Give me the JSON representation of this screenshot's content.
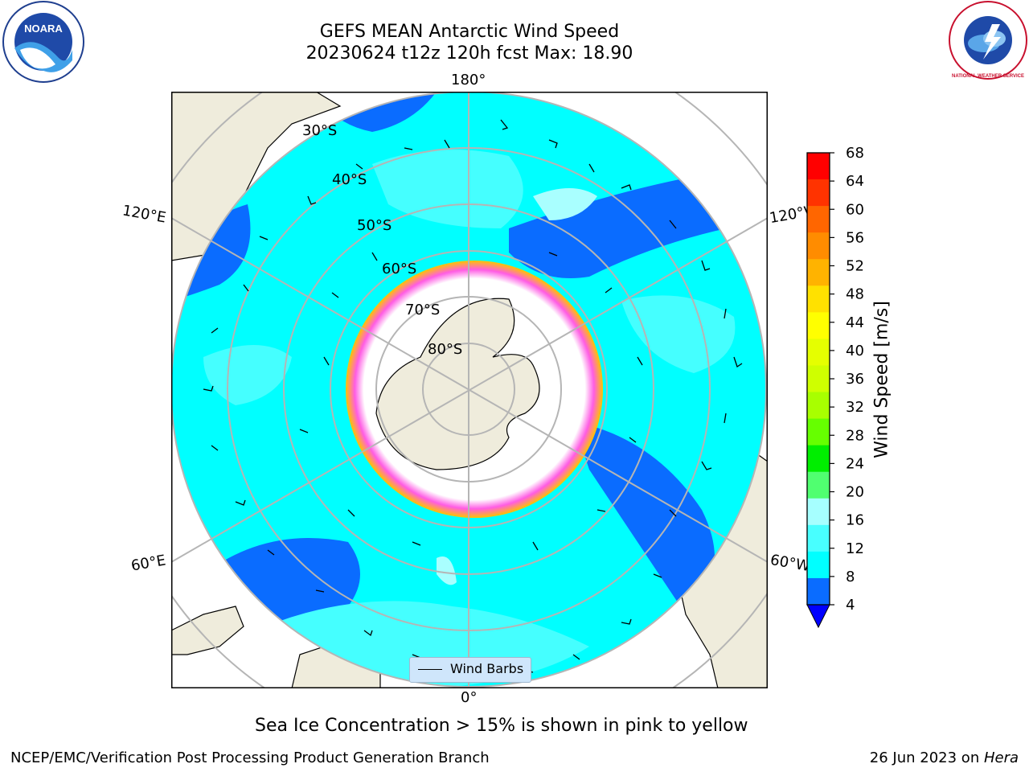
{
  "title": {
    "line1": "GEFS MEAN Antarctic Wind Speed",
    "line2": "20230624 t12z 120h fcst   Max: 18.90"
  },
  "logos": {
    "left": {
      "name": "NOARA"
    },
    "right": {
      "name": "NATIONAL WEATHER SERVICE"
    }
  },
  "map": {
    "longitude_labels": [
      "180°",
      "120°E",
      "120°W",
      "60°E",
      "60°W",
      "0°"
    ],
    "latitude_labels": [
      "30°S",
      "40°S",
      "50°S",
      "60°S",
      "70°S",
      "80°S"
    ],
    "legend_label": "Wind Barbs",
    "colors": {
      "land": "#efecdc",
      "wind_4_8": "#0a6cff",
      "wind_8_12": "#00ffff",
      "wind_12_16": "#45ffff",
      "wind_16_20": "#a9ffff",
      "sea_ice_low": "#ff5ce4",
      "sea_ice_high": "#ffc400"
    }
  },
  "colorbar": {
    "label": "Wind Speed [m/s]",
    "ticks": [
      "68",
      "64",
      "60",
      "56",
      "52",
      "48",
      "44",
      "40",
      "36",
      "32",
      "28",
      "24",
      "20",
      "16",
      "12",
      "8",
      "4"
    ],
    "colors": [
      "#ff0000",
      "#ff3300",
      "#ff6600",
      "#ff8c00",
      "#ffb300",
      "#ffe100",
      "#ffff00",
      "#e5ff00",
      "#cfff00",
      "#a8ff00",
      "#66ff00",
      "#00ee00",
      "#50ff70",
      "#a6ffff",
      "#48ffff",
      "#00ffff",
      "#0a6cff"
    ],
    "extend_color": "#0000ff"
  },
  "note": "Sea Ice Concentration > 15% is shown in pink to yellow",
  "footer": {
    "left": "NCEP/EMC/Verification Post Processing Product Generation Branch",
    "right_text": "26 Jun 2023 on ",
    "right_host": "Hera"
  }
}
